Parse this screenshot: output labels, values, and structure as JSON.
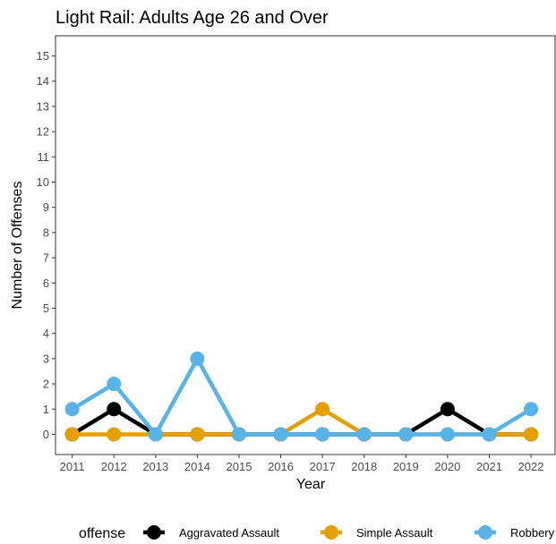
{
  "chart_data": {
    "type": "line",
    "title": "Light Rail: Adults Age 26 and Over",
    "xlabel": "Year",
    "ylabel": "Number of Offenses",
    "x": [
      2011,
      2012,
      2013,
      2014,
      2015,
      2016,
      2017,
      2018,
      2019,
      2020,
      2021,
      2022
    ],
    "xlim": [
      2010.6,
      2022.6
    ],
    "ylim": [
      -0.8,
      15.8
    ],
    "yticks": [
      0,
      1,
      2,
      3,
      4,
      5,
      6,
      7,
      8,
      9,
      10,
      11,
      12,
      13,
      14,
      15
    ],
    "grid": false,
    "legend": {
      "title": "offense",
      "position": "bottom"
    },
    "series": [
      {
        "name": "Aggravated Assault",
        "color": "#000000",
        "values": [
          0,
          1,
          0,
          0,
          0,
          0,
          0,
          0,
          0,
          1,
          0,
          0
        ]
      },
      {
        "name": "Simple Assault",
        "color": "#E69F00",
        "values": [
          0,
          0,
          0,
          0,
          0,
          0,
          1,
          0,
          0,
          0,
          0,
          0
        ]
      },
      {
        "name": "Robbery",
        "color": "#56B4E9",
        "values": [
          1,
          2,
          0,
          3,
          0,
          0,
          0,
          0,
          0,
          0,
          0,
          1
        ]
      }
    ]
  }
}
